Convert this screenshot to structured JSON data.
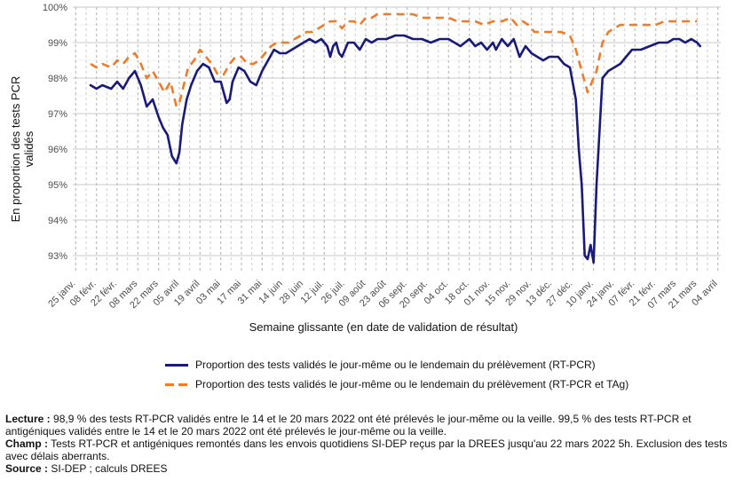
{
  "chart_data": {
    "type": "line",
    "xlabel": "Semaine glissante (en date de validation de résultat)",
    "ylabel": "En proportion des tests PCR validés",
    "ylim": [
      92.5,
      100
    ],
    "y_ticks": [
      93,
      94,
      95,
      96,
      97,
      98,
      99,
      100
    ],
    "y_tick_labels": [
      "93%",
      "94%",
      "95%",
      "96%",
      "97%",
      "98%",
      "99%",
      "100%"
    ],
    "x_tick_labels": [
      "25 janv.",
      "08 févr.",
      "22 févr.",
      "08 mars",
      "22 mars",
      "05 avril",
      "19 avril",
      "03 mai",
      "17 mai",
      "31 mai",
      "14 juin",
      "28 juin",
      "12 juil.",
      "26 juil.",
      "09 août",
      "23 août",
      "06 sept.",
      "20 sept.",
      "04 oct.",
      "18 oct.",
      "01 nov.",
      "15 nov.",
      "29 nov.",
      "13 déc.",
      "27 déc.",
      "10 janv.",
      "24 janv.",
      "07 févr.",
      "21 févr.",
      "07 mars",
      "21 mars",
      "04 avril"
    ],
    "x_tick_index": [
      0,
      14,
      28,
      42,
      56,
      70,
      84,
      98,
      112,
      126,
      140,
      154,
      168,
      182,
      196,
      210,
      224,
      238,
      252,
      266,
      280,
      294,
      308,
      322,
      336,
      350,
      364,
      378,
      392,
      406,
      420,
      434
    ],
    "x_range": [
      -2,
      436
    ],
    "grid": "major and minor",
    "legend_position": "bottom",
    "series": [
      {
        "name": "Proportion des tests validés le jour-même ou le lendemain du prélèvement (RT-PCR)",
        "color": "#1a1a7a",
        "style": "solid",
        "points": [
          [
            10,
            97.8
          ],
          [
            14,
            97.7
          ],
          [
            18,
            97.8
          ],
          [
            24,
            97.7
          ],
          [
            28,
            97.9
          ],
          [
            32,
            97.7
          ],
          [
            36,
            98.0
          ],
          [
            40,
            98.2
          ],
          [
            44,
            97.8
          ],
          [
            48,
            97.2
          ],
          [
            52,
            97.4
          ],
          [
            56,
            96.9
          ],
          [
            59,
            96.6
          ],
          [
            62,
            96.4
          ],
          [
            65,
            95.8
          ],
          [
            68,
            95.6
          ],
          [
            70,
            95.9
          ],
          [
            72,
            96.7
          ],
          [
            75,
            97.4
          ],
          [
            78,
            97.8
          ],
          [
            82,
            98.2
          ],
          [
            86,
            98.4
          ],
          [
            90,
            98.3
          ],
          [
            94,
            97.9
          ],
          [
            98,
            97.9
          ],
          [
            102,
            97.3
          ],
          [
            104,
            97.4
          ],
          [
            106,
            97.9
          ],
          [
            110,
            98.3
          ],
          [
            114,
            98.2
          ],
          [
            118,
            97.9
          ],
          [
            122,
            97.8
          ],
          [
            126,
            98.2
          ],
          [
            130,
            98.5
          ],
          [
            134,
            98.8
          ],
          [
            138,
            98.7
          ],
          [
            142,
            98.7
          ],
          [
            146,
            98.8
          ],
          [
            150,
            98.9
          ],
          [
            154,
            99.0
          ],
          [
            158,
            99.1
          ],
          [
            162,
            99.0
          ],
          [
            166,
            99.1
          ],
          [
            170,
            98.9
          ],
          [
            172,
            98.6
          ],
          [
            174,
            98.9
          ],
          [
            176,
            99.0
          ],
          [
            178,
            98.7
          ],
          [
            180,
            98.6
          ],
          [
            184,
            99.0
          ],
          [
            188,
            99.0
          ],
          [
            192,
            98.8
          ],
          [
            196,
            99.1
          ],
          [
            200,
            99.0
          ],
          [
            204,
            99.1
          ],
          [
            210,
            99.1
          ],
          [
            216,
            99.2
          ],
          [
            222,
            99.2
          ],
          [
            228,
            99.1
          ],
          [
            234,
            99.1
          ],
          [
            240,
            99.0
          ],
          [
            246,
            99.1
          ],
          [
            252,
            99.1
          ],
          [
            256,
            99.0
          ],
          [
            260,
            98.9
          ],
          [
            266,
            99.1
          ],
          [
            270,
            98.9
          ],
          [
            274,
            99.0
          ],
          [
            278,
            98.8
          ],
          [
            282,
            99.0
          ],
          [
            284,
            98.8
          ],
          [
            288,
            99.1
          ],
          [
            292,
            98.9
          ],
          [
            296,
            99.1
          ],
          [
            300,
            98.6
          ],
          [
            304,
            98.9
          ],
          [
            308,
            98.7
          ],
          [
            312,
            98.6
          ],
          [
            316,
            98.5
          ],
          [
            320,
            98.6
          ],
          [
            326,
            98.6
          ],
          [
            330,
            98.4
          ],
          [
            334,
            98.3
          ],
          [
            338,
            97.4
          ],
          [
            340,
            96.0
          ],
          [
            342,
            95.0
          ],
          [
            344,
            93.0
          ],
          [
            346,
            92.9
          ],
          [
            348,
            93.3
          ],
          [
            350,
            92.8
          ],
          [
            352,
            95.0
          ],
          [
            356,
            98.0
          ],
          [
            360,
            98.2
          ],
          [
            364,
            98.3
          ],
          [
            368,
            98.4
          ],
          [
            372,
            98.6
          ],
          [
            376,
            98.8
          ],
          [
            382,
            98.8
          ],
          [
            388,
            98.9
          ],
          [
            394,
            99.0
          ],
          [
            400,
            99.0
          ],
          [
            404,
            99.1
          ],
          [
            408,
            99.1
          ],
          [
            412,
            99.0
          ],
          [
            416,
            99.1
          ],
          [
            420,
            99.0
          ],
          [
            422,
            98.9
          ]
        ]
      },
      {
        "name": "Proportion des tests validés le jour-même ou le lendemain du prélèvement (RT-PCR et TAg)",
        "color": "#ee7c2a",
        "style": "dashed",
        "points": [
          [
            10,
            98.4
          ],
          [
            14,
            98.3
          ],
          [
            18,
            98.4
          ],
          [
            24,
            98.3
          ],
          [
            28,
            98.5
          ],
          [
            32,
            98.4
          ],
          [
            36,
            98.6
          ],
          [
            40,
            98.7
          ],
          [
            44,
            98.4
          ],
          [
            48,
            98.0
          ],
          [
            52,
            98.2
          ],
          [
            56,
            97.9
          ],
          [
            60,
            97.6
          ],
          [
            64,
            97.9
          ],
          [
            68,
            97.2
          ],
          [
            70,
            97.3
          ],
          [
            73,
            97.8
          ],
          [
            76,
            98.3
          ],
          [
            80,
            98.5
          ],
          [
            84,
            98.8
          ],
          [
            88,
            98.6
          ],
          [
            92,
            98.4
          ],
          [
            96,
            98.1
          ],
          [
            100,
            98.1
          ],
          [
            104,
            98.4
          ],
          [
            108,
            98.6
          ],
          [
            112,
            98.6
          ],
          [
            116,
            98.4
          ],
          [
            120,
            98.4
          ],
          [
            124,
            98.5
          ],
          [
            128,
            98.7
          ],
          [
            132,
            98.9
          ],
          [
            136,
            99.0
          ],
          [
            140,
            99.0
          ],
          [
            144,
            99.0
          ],
          [
            148,
            99.1
          ],
          [
            152,
            99.2
          ],
          [
            156,
            99.3
          ],
          [
            160,
            99.3
          ],
          [
            164,
            99.4
          ],
          [
            168,
            99.5
          ],
          [
            172,
            99.6
          ],
          [
            176,
            99.6
          ],
          [
            180,
            99.4
          ],
          [
            184,
            99.6
          ],
          [
            188,
            99.6
          ],
          [
            192,
            99.5
          ],
          [
            196,
            99.7
          ],
          [
            200,
            99.7
          ],
          [
            204,
            99.8
          ],
          [
            210,
            99.8
          ],
          [
            216,
            99.8
          ],
          [
            222,
            99.8
          ],
          [
            228,
            99.8
          ],
          [
            234,
            99.7
          ],
          [
            240,
            99.7
          ],
          [
            246,
            99.7
          ],
          [
            252,
            99.7
          ],
          [
            258,
            99.6
          ],
          [
            264,
            99.6
          ],
          [
            270,
            99.6
          ],
          [
            276,
            99.5
          ],
          [
            282,
            99.6
          ],
          [
            288,
            99.6
          ],
          [
            294,
            99.7
          ],
          [
            298,
            99.5
          ],
          [
            302,
            99.6
          ],
          [
            306,
            99.5
          ],
          [
            310,
            99.3
          ],
          [
            316,
            99.3
          ],
          [
            322,
            99.3
          ],
          [
            328,
            99.3
          ],
          [
            334,
            99.2
          ],
          [
            338,
            98.8
          ],
          [
            342,
            98.2
          ],
          [
            346,
            97.6
          ],
          [
            348,
            97.8
          ],
          [
            350,
            98.0
          ],
          [
            352,
            98.2
          ],
          [
            356,
            99.0
          ],
          [
            360,
            99.3
          ],
          [
            364,
            99.4
          ],
          [
            368,
            99.5
          ],
          [
            374,
            99.5
          ],
          [
            380,
            99.5
          ],
          [
            386,
            99.5
          ],
          [
            392,
            99.5
          ],
          [
            398,
            99.6
          ],
          [
            404,
            99.6
          ],
          [
            410,
            99.6
          ],
          [
            416,
            99.6
          ],
          [
            420,
            99.6
          ]
        ]
      }
    ]
  },
  "legend": {
    "item1": "Proportion des tests validés le jour-même ou le lendemain du prélèvement (RT-PCR)",
    "item2": "Proportion des tests validés le jour-même ou le lendemain du prélèvement (RT-PCR et TAg)"
  },
  "notes": {
    "lecture_label": "Lecture :",
    "lecture_text": " 98,9 % des tests RT-PCR validés entre le 14 et le 20 mars 2022 ont été prélevés le jour-même ou la veille. 99,5 % des tests RT-PCR et antigéniques validés entre le 14 et le 20 mars 2022 ont été prélevés le jour-même ou la veille.",
    "champ_label": "Champ :",
    "champ_text": " Tests RT-PCR et antigéniques remontés dans les envois quotidiens SI-DEP reçus par la DREES jusqu'au 22 mars 2022 5h. Exclusion des tests avec délais aberrants.",
    "source_label": "Source :",
    "source_text": " SI-DEP ; calculs DREES"
  }
}
